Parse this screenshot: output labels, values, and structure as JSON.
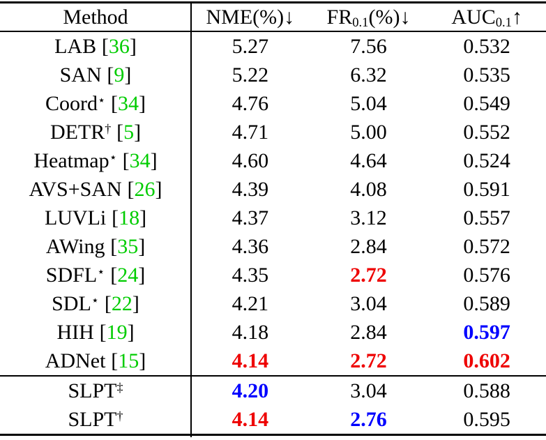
{
  "colors": {
    "best_value_red": "#EE0000",
    "second_best_blue": "#0000FF",
    "citation_green": "#00CC00",
    "text": "#000000",
    "background": "#FFFFFF"
  },
  "symbols": {
    "lbracket": "[",
    "rbracket": "]"
  },
  "table": {
    "header": {
      "method": "Method",
      "nme": {
        "label": "NME(%)",
        "arrow": "↓"
      },
      "fr": {
        "base": "FR",
        "sub": "0.1",
        "rest": "(%)",
        "arrow": "↓"
      },
      "auc": {
        "base": "AUC",
        "sub": "0.1",
        "arrow": "↑"
      }
    },
    "rows": [
      {
        "name": "LAB",
        "sup": "",
        "cite": "36",
        "nme": "5.27",
        "fr": "7.56",
        "auc": "0.532"
      },
      {
        "name": "SAN",
        "sup": "",
        "cite": "9",
        "nme": "5.22",
        "fr": "6.32",
        "auc": "0.535"
      },
      {
        "name": "Coord",
        "sup": "⋆",
        "cite": "34",
        "nme": "4.76",
        "fr": "5.04",
        "auc": "0.549"
      },
      {
        "name": "DETR",
        "sup": "†",
        "cite": "5",
        "nme": "4.71",
        "fr": "5.00",
        "auc": "0.552"
      },
      {
        "name": "Heatmap",
        "sup": "⋆",
        "cite": "34",
        "nme": "4.60",
        "fr": "4.64",
        "auc": "0.524"
      },
      {
        "name": "AVS+SAN",
        "sup": "",
        "cite": "26",
        "nme": "4.39",
        "fr": "4.08",
        "auc": "0.591"
      },
      {
        "name": "LUVLi",
        "sup": "",
        "cite": "18",
        "nme": "4.37",
        "fr": "3.12",
        "auc": "0.557"
      },
      {
        "name": "AWing",
        "sup": "",
        "cite": "35",
        "nme": "4.36",
        "fr": "2.84",
        "auc": "0.572"
      },
      {
        "name": "SDFL",
        "sup": "⋆",
        "cite": "24",
        "nme": "4.35",
        "fr": "2.72",
        "auc": "0.576"
      },
      {
        "name": "SDL",
        "sup": "⋆",
        "cite": "22",
        "nme": "4.21",
        "fr": "3.04",
        "auc": "0.589"
      },
      {
        "name": "HIH",
        "sup": "",
        "cite": "19",
        "nme": "4.18",
        "fr": "2.84",
        "auc": "0.597"
      },
      {
        "name": "ADNet",
        "sup": "",
        "cite": "15",
        "nme": "4.14",
        "fr": "2.72",
        "auc": "0.602"
      },
      {
        "name": "SLPT",
        "sup": "‡",
        "nme": "4.20",
        "fr": "3.04",
        "auc": "0.588"
      },
      {
        "name": "SLPT",
        "sup": "†",
        "nme": "4.14",
        "fr": "2.76",
        "auc": "0.595"
      }
    ]
  }
}
